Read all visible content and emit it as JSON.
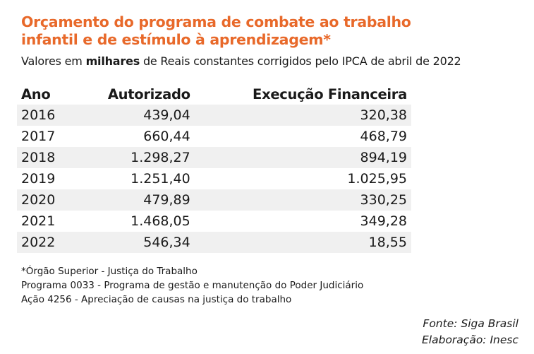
{
  "title": {
    "line1": "Orçamento do programa de combate ao trabalho",
    "line2": "infantil e de estímulo à aprendizagem*"
  },
  "subtitle": {
    "pre": "Valores em ",
    "bold": "milhares",
    "post": " de Reais constantes corrigidos pelo IPCA de abril de 2022"
  },
  "table": {
    "headers": [
      "Ano",
      "Autorizado",
      "Execução Financeira"
    ],
    "rows": [
      [
        "2016",
        "439,04",
        "320,38"
      ],
      [
        "2017",
        "660,44",
        "468,79"
      ],
      [
        "2018",
        "1.298,27",
        "894,19"
      ],
      [
        "2019",
        "1.251,40",
        "1.025,95"
      ],
      [
        "2020",
        "479,89",
        "330,25"
      ],
      [
        "2021",
        "1.468,05",
        "349,28"
      ],
      [
        "2022",
        "546,34",
        "18,55"
      ]
    ]
  },
  "notes": [
    "*Órgão Superior - Justiça do Trabalho",
    "Programa 0033 - Programa de gestão e manutenção do Poder Judiciário",
    "Ação 4256 - Apreciação de causas na justiça do trabalho"
  ],
  "source": [
    "Fonte: Siga Brasil",
    "Elaboração: Inesc"
  ],
  "colors": {
    "accent": "#e8692a",
    "row_shade": "#f0f0f0"
  }
}
